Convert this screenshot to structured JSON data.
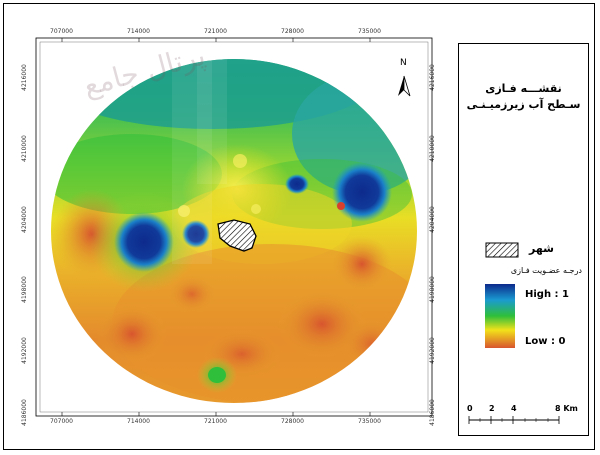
{
  "map": {
    "x_ticks": [
      "707000",
      "714000",
      "721000",
      "728000",
      "735000"
    ],
    "y_ticks": [
      "4216000",
      "4210000",
      "4204000",
      "4198000",
      "4192000",
      "4186000"
    ],
    "north_label": "N",
    "watermark": "پرتال جامع"
  },
  "legend": {
    "title_line1": "نقشـــه فـازی",
    "title_line2": "سـطح آب زیرزمیـنـی",
    "city_label": "شهر",
    "membership_label": "درجـه عضـویت فـازی",
    "high_label": "High : 1",
    "low_label": "Low : 0",
    "colors": {
      "high": "#0d2a8c",
      "mid_blue": "#1a9bd0",
      "green": "#2fbf3a",
      "yellow": "#f2e21a",
      "low": "#d8552e"
    },
    "scale_ticks": [
      "0",
      "2",
      "4",
      "8 Km"
    ]
  }
}
